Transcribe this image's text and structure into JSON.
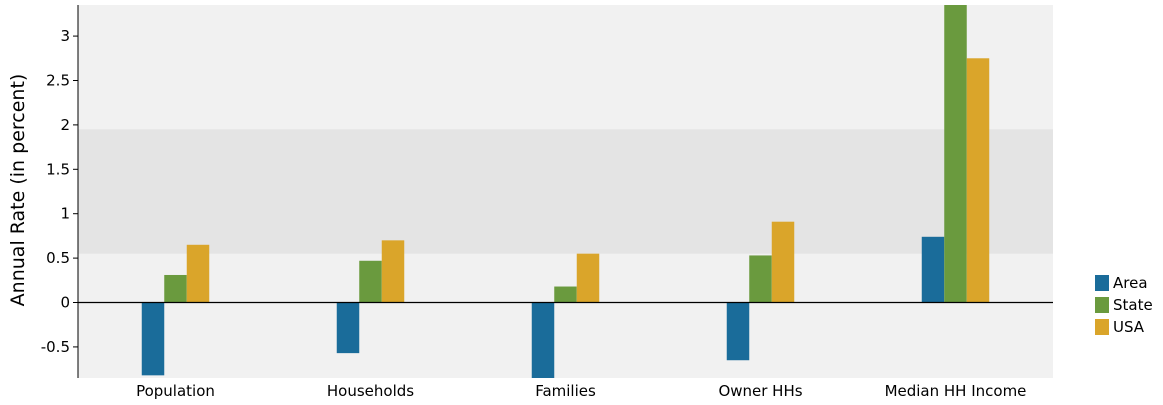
{
  "chart_data": {
    "type": "bar",
    "title": "",
    "xlabel": "",
    "ylabel": "Annual Rate (in percent)",
    "ylim": [
      -0.85,
      3.35
    ],
    "yticks": [
      -0.5,
      0,
      0.5,
      1,
      1.5,
      2,
      2.5,
      3
    ],
    "ytick_labels": [
      "-0.5",
      "0",
      "0.5",
      "1",
      "1.5",
      "2",
      "2.5",
      "3"
    ],
    "categories": [
      "Population",
      "Households",
      "Families",
      "Owner HHs",
      "Median HH Income"
    ],
    "series": [
      {
        "name": "Area",
        "color": "#1a6c9a",
        "values": [
          -0.82,
          -0.57,
          -0.88,
          -0.65,
          0.74
        ]
      },
      {
        "name": "State",
        "color": "#6a9a3e",
        "values": [
          0.31,
          0.47,
          0.18,
          0.53,
          3.4
        ]
      },
      {
        "name": "USA",
        "color": "#daa52a",
        "values": [
          0.65,
          0.7,
          0.55,
          0.91,
          2.75
        ]
      }
    ],
    "highlight_band": [
      0.55,
      1.95
    ],
    "grid": false,
    "legend_position": "right"
  }
}
